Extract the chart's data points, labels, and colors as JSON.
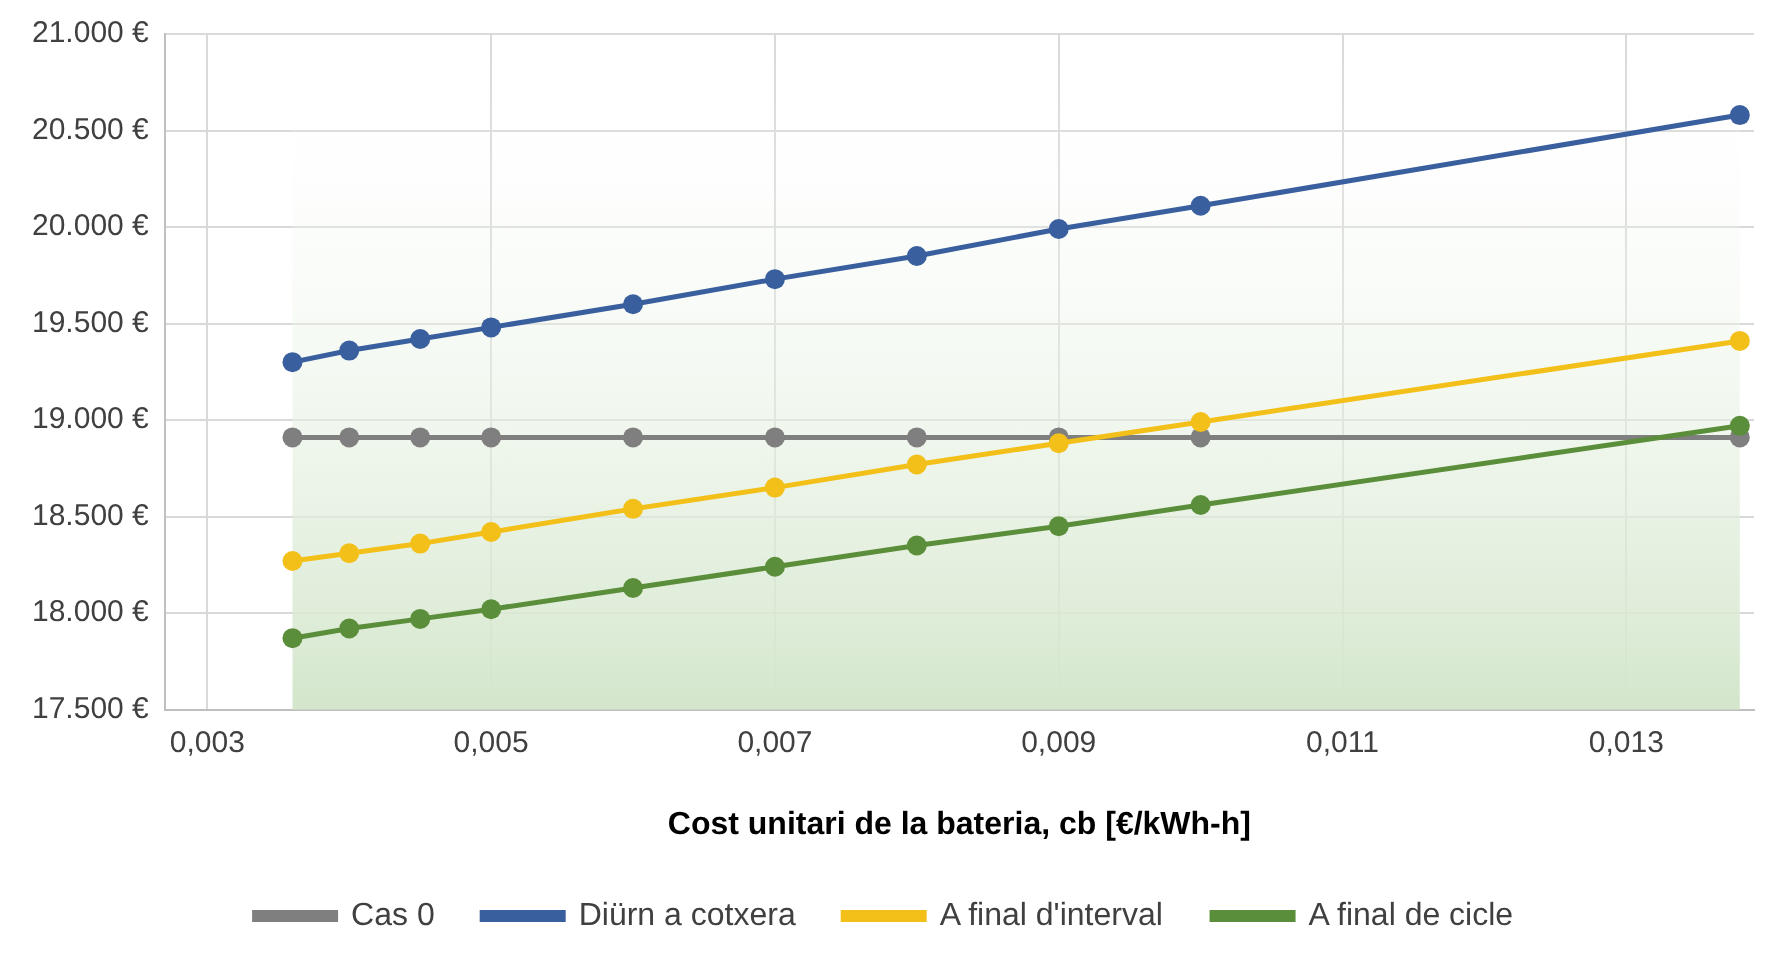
{
  "chart_data": {
    "type": "line",
    "xlabel": "Cost unitari de la bateria, cb [€/kWh-h]",
    "x": [
      0.0036,
      0.004,
      0.0045,
      0.005,
      0.006,
      0.007,
      0.008,
      0.009,
      0.01,
      0.0138
    ],
    "series": [
      {
        "name": "Cas 0",
        "color": "#7f7f7f",
        "values": [
          18910,
          18910,
          18910,
          18910,
          18910,
          18910,
          18910,
          18910,
          18910,
          18910
        ]
      },
      {
        "name": "Diürn a cotxera",
        "color": "#3a5f9e",
        "values": [
          19300,
          19360,
          19420,
          19480,
          19600,
          19730,
          19850,
          19990,
          20110,
          20580
        ]
      },
      {
        "name": "A final d'interval",
        "color": "#f2c018",
        "values": [
          18270,
          18310,
          18360,
          18420,
          18540,
          18650,
          18770,
          18880,
          18990,
          19410
        ]
      },
      {
        "name": "A final de cicle",
        "color": "#5b8e3a",
        "values": [
          17870,
          17920,
          17970,
          18020,
          18130,
          18240,
          18350,
          18450,
          18560,
          18970
        ]
      }
    ],
    "xlim": [
      0.0027,
      0.0139
    ],
    "xticks": [
      {
        "value": 0.003,
        "label": "0,003"
      },
      {
        "value": 0.005,
        "label": "0,005"
      },
      {
        "value": 0.007,
        "label": "0,007"
      },
      {
        "value": 0.009,
        "label": "0,009"
      },
      {
        "value": 0.011,
        "label": "0,011"
      },
      {
        "value": 0.013,
        "label": "0,013"
      }
    ],
    "ylim": [
      17500,
      21000
    ],
    "yticks": [
      {
        "value": 17500,
        "label": "17.500 €"
      },
      {
        "value": 18000,
        "label": "18.000 €"
      },
      {
        "value": 18500,
        "label": "18.500 €"
      },
      {
        "value": 19000,
        "label": "19.000 €"
      },
      {
        "value": 19500,
        "label": "19.500 €"
      },
      {
        "value": 20000,
        "label": "20.000 €"
      },
      {
        "value": 20500,
        "label": "20.500 €"
      },
      {
        "value": 21000,
        "label": "21.000 €"
      }
    ],
    "bands": [
      {
        "axis": "x",
        "from": 0.0036,
        "to": 0.0138,
        "color": "#d3e6cb"
      }
    ],
    "grid": true,
    "legend": "bottom",
    "marker": "circle",
    "line_style": "solid"
  }
}
